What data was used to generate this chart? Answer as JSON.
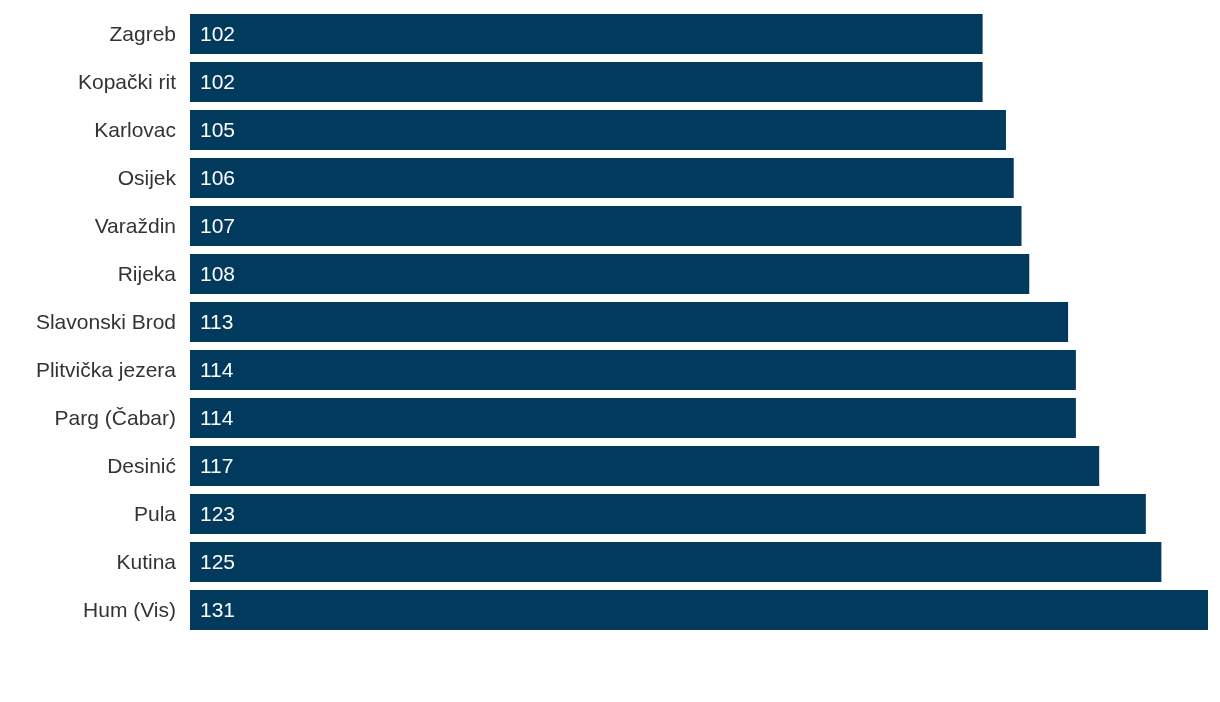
{
  "chart_data": {
    "type": "bar",
    "orientation": "horizontal",
    "categories": [
      "Zagreb",
      "Kopački rit",
      "Karlovac",
      "Osijek",
      "Varaždin",
      "Rijeka",
      "Slavonski Brod",
      "Plitvička jezera",
      "Parg (Čabar)",
      "Desinić",
      "Pula",
      "Kutina",
      "Hum (Vis)"
    ],
    "values": [
      102,
      102,
      105,
      106,
      107,
      108,
      113,
      114,
      114,
      117,
      123,
      125,
      131
    ],
    "color": "#023a5e",
    "data_labels": true,
    "grid": false
  }
}
